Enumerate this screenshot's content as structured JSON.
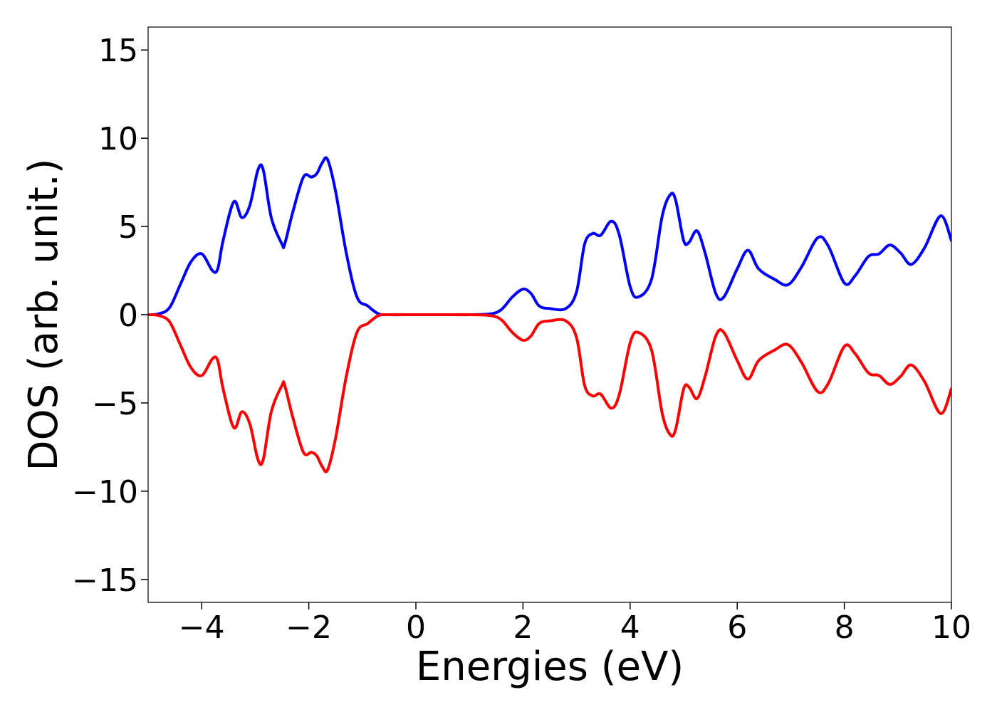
{
  "chart_data": {
    "type": "line",
    "title": "",
    "xlabel": "Energies (eV)",
    "ylabel": "DOS (arb. unit.)",
    "xlim": [
      -5,
      10
    ],
    "ylim": [
      -16.3,
      16.3
    ],
    "xticks": [
      -4,
      -2,
      0,
      2,
      4,
      6,
      8,
      10
    ],
    "xtick_labels": [
      "−4",
      "−2",
      "0",
      "2",
      "4",
      "6",
      "8",
      "10"
    ],
    "yticks": [
      15,
      10,
      5,
      0,
      -5,
      -10,
      -15
    ],
    "ytick_labels": [
      "15",
      "10",
      "5",
      "0",
      "−5",
      "−10",
      "−15"
    ],
    "grid": false,
    "series": [
      {
        "color": "#0000ff",
        "x": [
          -5,
          -4.8,
          -4.6,
          -4.4,
          -4.2,
          -4.0,
          -3.8,
          -3.7,
          -3.6,
          -3.4,
          -3.25,
          -3.1,
          -2.95,
          -2.85,
          -2.7,
          -2.5,
          -2.45,
          -2.3,
          -2.1,
          -1.95,
          -1.85,
          -1.75,
          -1.65,
          -1.5,
          -1.3,
          -1.1,
          -0.9,
          -0.7,
          -0.5,
          0,
          0.5,
          1.0,
          1.4,
          1.6,
          1.8,
          2.0,
          2.15,
          2.3,
          2.5,
          2.8,
          3.0,
          3.15,
          3.3,
          3.45,
          3.65,
          3.8,
          4.0,
          4.15,
          4.4,
          4.6,
          4.75,
          4.85,
          5.0,
          5.1,
          5.25,
          5.4,
          5.6,
          5.75,
          6.0,
          6.2,
          6.4,
          6.7,
          6.95,
          7.2,
          7.5,
          7.7,
          8.0,
          8.2,
          8.45,
          8.65,
          8.85,
          9.05,
          9.25,
          9.5,
          9.8,
          10.0
        ],
        "y": [
          0,
          0.05,
          0.4,
          1.7,
          3.0,
          3.45,
          2.5,
          2.6,
          4.2,
          6.4,
          5.5,
          6.2,
          8.2,
          8.2,
          5.5,
          4.0,
          4.0,
          5.8,
          7.8,
          7.8,
          8.0,
          8.6,
          8.8,
          7.0,
          3.5,
          1.0,
          0.5,
          0.05,
          0,
          0,
          0,
          0,
          0.05,
          0.3,
          1.0,
          1.45,
          1.2,
          0.5,
          0.35,
          0.35,
          1.3,
          4.0,
          4.6,
          4.5,
          5.3,
          4.5,
          1.6,
          1.0,
          2.0,
          5.6,
          6.8,
          6.5,
          4.2,
          4.1,
          4.75,
          3.5,
          1.2,
          1.0,
          2.6,
          3.65,
          2.6,
          2.0,
          1.7,
          2.7,
          4.35,
          3.9,
          1.8,
          2.2,
          3.3,
          3.45,
          3.95,
          3.5,
          2.85,
          3.8,
          5.6,
          4.2
        ]
      },
      {
        "color": "#ff0000",
        "x": [
          -5,
          -4.8,
          -4.6,
          -4.4,
          -4.2,
          -4.0,
          -3.8,
          -3.7,
          -3.6,
          -3.4,
          -3.25,
          -3.1,
          -2.95,
          -2.85,
          -2.7,
          -2.5,
          -2.45,
          -2.3,
          -2.1,
          -1.95,
          -1.85,
          -1.75,
          -1.65,
          -1.5,
          -1.3,
          -1.1,
          -0.9,
          -0.7,
          -0.5,
          0,
          0.5,
          1.0,
          1.4,
          1.6,
          1.8,
          2.0,
          2.15,
          2.3,
          2.5,
          2.8,
          3.0,
          3.15,
          3.3,
          3.45,
          3.65,
          3.8,
          4.0,
          4.15,
          4.4,
          4.6,
          4.75,
          4.85,
          5.0,
          5.1,
          5.25,
          5.4,
          5.6,
          5.75,
          6.0,
          6.2,
          6.4,
          6.7,
          6.95,
          7.2,
          7.5,
          7.7,
          8.0,
          8.2,
          8.45,
          8.65,
          8.85,
          9.05,
          9.25,
          9.5,
          9.8,
          10.0
        ],
        "y": [
          0,
          -0.05,
          -0.4,
          -1.7,
          -3.0,
          -3.45,
          -2.5,
          -2.6,
          -4.2,
          -6.4,
          -5.5,
          -6.2,
          -8.2,
          -8.2,
          -5.5,
          -4.0,
          -4.0,
          -5.8,
          -7.8,
          -7.8,
          -8.0,
          -8.6,
          -8.8,
          -7.0,
          -3.5,
          -1.0,
          -0.5,
          -0.05,
          0,
          0,
          0,
          0,
          -0.05,
          -0.3,
          -1.0,
          -1.45,
          -1.2,
          -0.5,
          -0.35,
          -0.35,
          -1.3,
          -4.0,
          -4.6,
          -4.5,
          -5.3,
          -4.5,
          -1.6,
          -1.0,
          -2.0,
          -5.6,
          -6.8,
          -6.5,
          -4.2,
          -4.1,
          -4.75,
          -3.5,
          -1.2,
          -1.0,
          -2.6,
          -3.65,
          -2.6,
          -2.0,
          -1.7,
          -2.7,
          -4.35,
          -3.9,
          -1.8,
          -2.2,
          -3.3,
          -3.45,
          -3.95,
          -3.5,
          -2.85,
          -3.8,
          -5.6,
          -4.2
        ]
      }
    ]
  }
}
